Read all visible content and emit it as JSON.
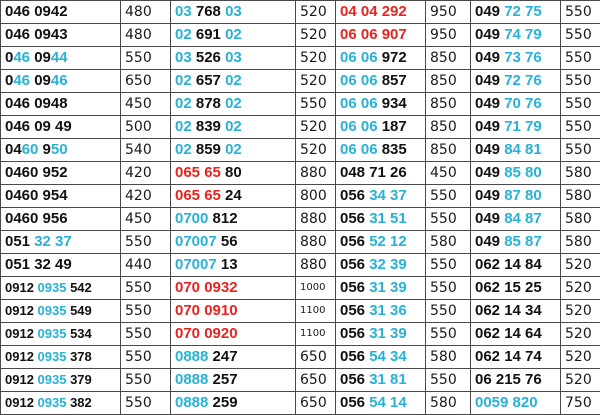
{
  "colors": {
    "b": "#111111",
    "c": "#27b2d6",
    "r": "#e8231f"
  },
  "rows": [
    [
      {
        "num": [
          [
            "b",
            "046 0942"
          ]
        ],
        "price": "480"
      },
      {
        "num": [
          [
            "c",
            "03"
          ],
          [
            "b",
            " 768 "
          ],
          [
            "c",
            "03"
          ]
        ],
        "price": "520"
      },
      {
        "num": [
          [
            "r",
            "04 04 292"
          ]
        ],
        "price": "950"
      },
      {
        "num": [
          [
            "b",
            "049 "
          ],
          [
            "c",
            "72 75"
          ]
        ],
        "price": "550"
      }
    ],
    [
      {
        "num": [
          [
            "b",
            "046 0943"
          ]
        ],
        "price": "480"
      },
      {
        "num": [
          [
            "c",
            "02"
          ],
          [
            "b",
            " 691 "
          ],
          [
            "c",
            "02"
          ]
        ],
        "price": "520"
      },
      {
        "num": [
          [
            "r",
            "06 06 907"
          ]
        ],
        "price": "950"
      },
      {
        "num": [
          [
            "b",
            "049 "
          ],
          [
            "c",
            "74 79"
          ]
        ],
        "price": "550"
      }
    ],
    [
      {
        "num": [
          [
            "b",
            "0"
          ],
          [
            "c",
            "46"
          ],
          [
            "b",
            " 09"
          ],
          [
            "c",
            "44"
          ]
        ],
        "price": "550"
      },
      {
        "num": [
          [
            "c",
            "03"
          ],
          [
            "b",
            " 526 "
          ],
          [
            "c",
            "03"
          ]
        ],
        "price": "520"
      },
      {
        "num": [
          [
            "c",
            "06 06"
          ],
          [
            "b",
            " 972"
          ]
        ],
        "price": "850"
      },
      {
        "num": [
          [
            "b",
            "049 "
          ],
          [
            "c",
            "73 76"
          ]
        ],
        "price": "550"
      }
    ],
    [
      {
        "num": [
          [
            "b",
            "0"
          ],
          [
            "c",
            "46"
          ],
          [
            "b",
            " 09"
          ],
          [
            "c",
            "46"
          ]
        ],
        "price": "650"
      },
      {
        "num": [
          [
            "c",
            "02"
          ],
          [
            "b",
            " 657 "
          ],
          [
            "c",
            "02"
          ]
        ],
        "price": "520"
      },
      {
        "num": [
          [
            "c",
            "06 06"
          ],
          [
            "b",
            " 857"
          ]
        ],
        "price": "850"
      },
      {
        "num": [
          [
            "b",
            "049 "
          ],
          [
            "c",
            "72 76"
          ]
        ],
        "price": "550"
      }
    ],
    [
      {
        "num": [
          [
            "b",
            "046 0948"
          ]
        ],
        "price": "450"
      },
      {
        "num": [
          [
            "c",
            "02"
          ],
          [
            "b",
            " 878 "
          ],
          [
            "c",
            "02"
          ]
        ],
        "price": "550"
      },
      {
        "num": [
          [
            "c",
            "06 06"
          ],
          [
            "b",
            " 934"
          ]
        ],
        "price": "850"
      },
      {
        "num": [
          [
            "b",
            "049 "
          ],
          [
            "c",
            "70 76"
          ]
        ],
        "price": "550"
      }
    ],
    [
      {
        "num": [
          [
            "b",
            "046 09 49"
          ]
        ],
        "price": "500"
      },
      {
        "num": [
          [
            "c",
            "02"
          ],
          [
            "b",
            " 839 "
          ],
          [
            "c",
            "02"
          ]
        ],
        "price": "520"
      },
      {
        "num": [
          [
            "c",
            "06 06"
          ],
          [
            "b",
            " 187"
          ]
        ],
        "price": "850"
      },
      {
        "num": [
          [
            "b",
            "049 "
          ],
          [
            "c",
            "71 79"
          ]
        ],
        "price": "550"
      }
    ],
    [
      {
        "num": [
          [
            "b",
            "04"
          ],
          [
            "c",
            "60"
          ],
          [
            "b",
            " 9"
          ],
          [
            "c",
            "50"
          ]
        ],
        "price": "540"
      },
      {
        "num": [
          [
            "c",
            "02"
          ],
          [
            "b",
            " 859 "
          ],
          [
            "c",
            "02"
          ]
        ],
        "price": "520"
      },
      {
        "num": [
          [
            "c",
            "06 06"
          ],
          [
            "b",
            " 835"
          ]
        ],
        "price": "850"
      },
      {
        "num": [
          [
            "b",
            "049 "
          ],
          [
            "c",
            "84 81"
          ]
        ],
        "price": "550"
      }
    ],
    [
      {
        "num": [
          [
            "b",
            "0460 952"
          ]
        ],
        "price": "420"
      },
      {
        "num": [
          [
            "r",
            "065 65"
          ],
          [
            "b",
            " 80"
          ]
        ],
        "price": "880"
      },
      {
        "num": [
          [
            "b",
            "048 71 26"
          ]
        ],
        "price": "450"
      },
      {
        "num": [
          [
            "b",
            "049 "
          ],
          [
            "c",
            "85 80"
          ]
        ],
        "price": "580"
      }
    ],
    [
      {
        "num": [
          [
            "b",
            "0460 954"
          ]
        ],
        "price": "420"
      },
      {
        "num": [
          [
            "r",
            "065 65"
          ],
          [
            "b",
            " 24"
          ]
        ],
        "price": "800"
      },
      {
        "num": [
          [
            "b",
            "056 "
          ],
          [
            "c",
            "34 37"
          ]
        ],
        "price": "550"
      },
      {
        "num": [
          [
            "b",
            "049 "
          ],
          [
            "c",
            "87 80"
          ]
        ],
        "price": "580"
      }
    ],
    [
      {
        "num": [
          [
            "b",
            "0460 956"
          ]
        ],
        "price": "450"
      },
      {
        "num": [
          [
            "c",
            "0700"
          ],
          [
            "b",
            " 812"
          ]
        ],
        "price": "880"
      },
      {
        "num": [
          [
            "b",
            "056 "
          ],
          [
            "c",
            "31 51"
          ]
        ],
        "price": "550"
      },
      {
        "num": [
          [
            "b",
            "049 "
          ],
          [
            "c",
            "84 87"
          ]
        ],
        "price": "580"
      }
    ],
    [
      {
        "num": [
          [
            "b",
            "051 "
          ],
          [
            "c",
            "32 37"
          ]
        ],
        "price": "550"
      },
      {
        "num": [
          [
            "c",
            "07007"
          ],
          [
            "b",
            " 56"
          ]
        ],
        "price": "880"
      },
      {
        "num": [
          [
            "b",
            "056 "
          ],
          [
            "c",
            "52 12"
          ]
        ],
        "price": "580"
      },
      {
        "num": [
          [
            "b",
            "049 "
          ],
          [
            "c",
            "85 87"
          ]
        ],
        "price": "580"
      }
    ],
    [
      {
        "num": [
          [
            "b",
            "051 32 49"
          ]
        ],
        "price": "440"
      },
      {
        "num": [
          [
            "c",
            "07007"
          ],
          [
            "b",
            " 13"
          ]
        ],
        "price": "880"
      },
      {
        "num": [
          [
            "b",
            "056 "
          ],
          [
            "c",
            "32 39"
          ]
        ],
        "price": "550"
      },
      {
        "num": [
          [
            "b",
            "062 14 84"
          ]
        ],
        "price": "520"
      }
    ],
    [
      {
        "num": [
          [
            "b",
            "0912 "
          ],
          [
            "c",
            "0935"
          ],
          [
            "b",
            " 542"
          ]
        ],
        "price": "550",
        "small": true
      },
      {
        "num": [
          [
            "r",
            "070 0932"
          ]
        ],
        "price": "1000"
      },
      {
        "num": [
          [
            "b",
            "056 "
          ],
          [
            "c",
            "31 39"
          ]
        ],
        "price": "550"
      },
      {
        "num": [
          [
            "b",
            "062 15 25"
          ]
        ],
        "price": "520"
      }
    ],
    [
      {
        "num": [
          [
            "b",
            "0912 "
          ],
          [
            "c",
            "0935"
          ],
          [
            "b",
            " 549"
          ]
        ],
        "price": "550",
        "small": true
      },
      {
        "num": [
          [
            "r",
            "070 0910"
          ]
        ],
        "price": "1100"
      },
      {
        "num": [
          [
            "b",
            "056 "
          ],
          [
            "c",
            "31 36"
          ]
        ],
        "price": "550"
      },
      {
        "num": [
          [
            "b",
            "062 14 34"
          ]
        ],
        "price": "520"
      }
    ],
    [
      {
        "num": [
          [
            "b",
            "0912 "
          ],
          [
            "c",
            "0935"
          ],
          [
            "b",
            " 534"
          ]
        ],
        "price": "550",
        "small": true
      },
      {
        "num": [
          [
            "r",
            "070 0920"
          ]
        ],
        "price": "1100"
      },
      {
        "num": [
          [
            "b",
            "056 "
          ],
          [
            "c",
            "31 39"
          ]
        ],
        "price": "550"
      },
      {
        "num": [
          [
            "b",
            "062 14 64"
          ]
        ],
        "price": "520"
      }
    ],
    [
      {
        "num": [
          [
            "b",
            "0912 "
          ],
          [
            "c",
            "0935"
          ],
          [
            "b",
            " 378"
          ]
        ],
        "price": "550",
        "small": true
      },
      {
        "num": [
          [
            "c",
            "0888"
          ],
          [
            "b",
            " 247"
          ]
        ],
        "price": "650"
      },
      {
        "num": [
          [
            "b",
            "056 "
          ],
          [
            "c",
            "54 34"
          ]
        ],
        "price": "580"
      },
      {
        "num": [
          [
            "b",
            "062 14 74"
          ]
        ],
        "price": "520"
      }
    ],
    [
      {
        "num": [
          [
            "b",
            "0912 "
          ],
          [
            "c",
            "0935"
          ],
          [
            "b",
            " 379"
          ]
        ],
        "price": "550",
        "small": true
      },
      {
        "num": [
          [
            "c",
            "0888"
          ],
          [
            "b",
            " 257"
          ]
        ],
        "price": "650"
      },
      {
        "num": [
          [
            "b",
            "056 "
          ],
          [
            "c",
            "31 81"
          ]
        ],
        "price": "550"
      },
      {
        "num": [
          [
            "b",
            "06 215 76"
          ]
        ],
        "price": "520"
      }
    ],
    [
      {
        "num": [
          [
            "b",
            "0912 "
          ],
          [
            "c",
            "0935"
          ],
          [
            "b",
            " 382"
          ]
        ],
        "price": "550",
        "small": true
      },
      {
        "num": [
          [
            "c",
            "0888"
          ],
          [
            "b",
            " 259"
          ]
        ],
        "price": "650"
      },
      {
        "num": [
          [
            "b",
            "056 "
          ],
          [
            "c",
            "54 14"
          ]
        ],
        "price": "580"
      },
      {
        "num": [
          [
            "c",
            "0059 820"
          ]
        ],
        "price": "750"
      }
    ]
  ]
}
